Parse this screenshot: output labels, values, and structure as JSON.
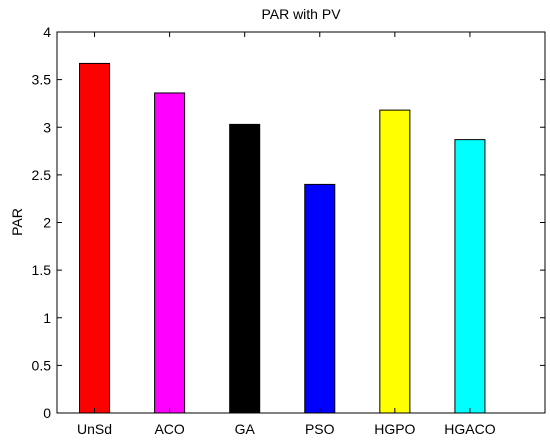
{
  "chart_data": {
    "type": "bar",
    "title": "PAR with PV",
    "xlabel": "",
    "ylabel": "PAR",
    "categories": [
      "UnSd",
      "ACO",
      "GA",
      "PSO",
      "HGPO",
      "HGACO"
    ],
    "values": [
      3.67,
      3.36,
      3.03,
      2.4,
      3.18,
      2.87
    ],
    "colors": [
      "#ff0000",
      "#ff00ff",
      "#000000",
      "#0000ff",
      "#ffff00",
      "#00ffff"
    ],
    "ylim": [
      0,
      4
    ],
    "yticks": [
      0,
      0.5,
      1,
      1.5,
      2,
      2.5,
      3,
      3.5,
      4
    ],
    "ytick_labels": [
      "0",
      "0.5",
      "1",
      "1.5",
      "2",
      "2.5",
      "3",
      "3.5",
      "4"
    ],
    "xlim": [
      0.5,
      7
    ],
    "grid": false,
    "legend": "none"
  }
}
